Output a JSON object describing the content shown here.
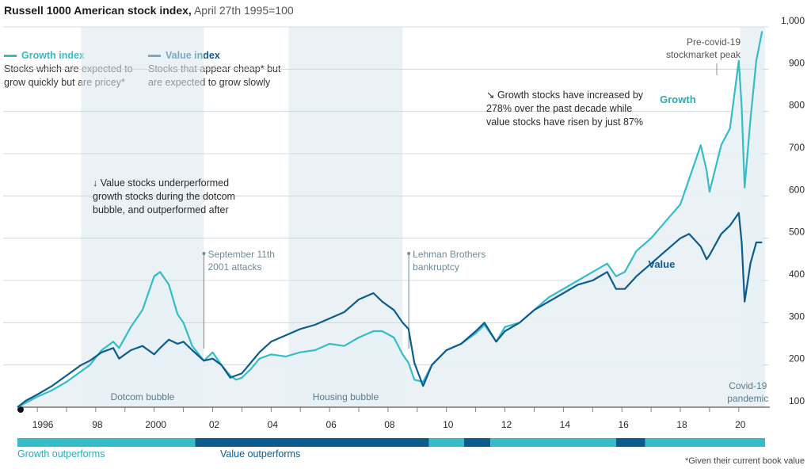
{
  "header": {
    "title": "Russell 1000 American stock index,",
    "subtitle": "April 27th 1995=100"
  },
  "legend": [
    {
      "name": "Growth index",
      "desc_line1": "Stocks which are expected to",
      "desc_line2": "grow quickly but are pricey*",
      "color": "#35bcc7"
    },
    {
      "name": "Value index",
      "desc_line1": "Stocks that appear cheap* but",
      "desc_line2": "are expected to grow slowly",
      "color": "#0e5c8e"
    }
  ],
  "footnote": "*Given their current book value",
  "colors": {
    "growth": "#35bcc7",
    "value": "#0e5c8e",
    "band_growth": "#35bcc7",
    "band_value": "#0e5c8e",
    "shade": "#d9e7ee",
    "fill": "#e8f1f5",
    "grid": "#c9d3d8",
    "text": "#2a2a2a"
  },
  "chart_data": {
    "type": "line",
    "x_unit": "year",
    "xlim": [
      1995.32,
      2020.9
    ],
    "ylim": [
      100,
      1000
    ],
    "yticks": [
      100,
      200,
      300,
      400,
      500,
      600,
      700,
      800,
      900,
      1000
    ],
    "ytick_labels": [
      "100",
      "200",
      "300",
      "400",
      "500",
      "600",
      "700",
      "800",
      "900",
      "1,000"
    ],
    "xticks": [
      1996,
      1998,
      2000,
      2002,
      2004,
      2006,
      2008,
      2010,
      2012,
      2014,
      2016,
      2018,
      2020
    ],
    "xtick_labels": [
      "1996",
      "98",
      "2000",
      "02",
      "04",
      "06",
      "08",
      "10",
      "12",
      "14",
      "16",
      "18",
      "20"
    ],
    "series": [
      {
        "name": "Growth",
        "x": [
          1995.32,
          1995.6,
          1996.0,
          1996.5,
          1997.0,
          1997.5,
          1997.8,
          1998.2,
          1998.6,
          1998.8,
          1999.2,
          1999.6,
          1999.8,
          2000.0,
          2000.2,
          2000.5,
          2000.8,
          2001.0,
          2001.3,
          2001.7,
          2002.0,
          2002.3,
          2002.6,
          2002.8,
          2003.0,
          2003.3,
          2003.6,
          2004.0,
          2004.5,
          2005.0,
          2005.5,
          2006.0,
          2006.5,
          2007.0,
          2007.5,
          2007.8,
          2008.2,
          2008.5,
          2008.7,
          2008.9,
          2009.2,
          2009.5,
          2010.0,
          2010.5,
          2011.0,
          2011.3,
          2011.7,
          2012.0,
          2012.5,
          2013.0,
          2013.5,
          2014.0,
          2014.5,
          2015.0,
          2015.5,
          2015.8,
          2016.1,
          2016.5,
          2017.0,
          2017.5,
          2018.0,
          2018.3,
          2018.7,
          2018.9,
          2019.0,
          2019.4,
          2019.7,
          2020.0,
          2020.1,
          2020.2,
          2020.4,
          2020.6,
          2020.8
        ],
        "values": [
          100,
          110,
          125,
          140,
          160,
          185,
          200,
          235,
          255,
          240,
          290,
          330,
          370,
          410,
          420,
          390,
          320,
          300,
          245,
          210,
          230,
          200,
          175,
          165,
          170,
          190,
          215,
          225,
          220,
          230,
          235,
          250,
          245,
          265,
          280,
          280,
          265,
          225,
          205,
          165,
          160,
          200,
          235,
          250,
          275,
          295,
          255,
          290,
          300,
          330,
          360,
          380,
          400,
          420,
          440,
          410,
          420,
          470,
          500,
          540,
          580,
          640,
          720,
          660,
          610,
          720,
          760,
          920,
          810,
          620,
          780,
          920,
          990
        ]
      },
      {
        "name": "Value",
        "x": [
          1995.32,
          1995.6,
          1996.0,
          1996.5,
          1997.0,
          1997.5,
          1997.8,
          1998.2,
          1998.6,
          1998.8,
          1999.2,
          1999.6,
          1999.8,
          2000.0,
          2000.2,
          2000.5,
          2000.8,
          2001.0,
          2001.3,
          2001.7,
          2002.0,
          2002.3,
          2002.6,
          2002.8,
          2003.0,
          2003.3,
          2003.6,
          2004.0,
          2004.5,
          2005.0,
          2005.5,
          2006.0,
          2006.5,
          2007.0,
          2007.5,
          2007.8,
          2008.2,
          2008.5,
          2008.7,
          2008.9,
          2009.2,
          2009.5,
          2010.0,
          2010.5,
          2011.0,
          2011.3,
          2011.7,
          2012.0,
          2012.5,
          2013.0,
          2013.5,
          2014.0,
          2014.5,
          2015.0,
          2015.5,
          2015.8,
          2016.1,
          2016.5,
          2017.0,
          2017.5,
          2018.0,
          2018.3,
          2018.7,
          2018.9,
          2019.0,
          2019.4,
          2019.7,
          2020.0,
          2020.1,
          2020.2,
          2020.4,
          2020.6,
          2020.8
        ],
        "values": [
          100,
          115,
          130,
          150,
          175,
          200,
          210,
          230,
          240,
          215,
          235,
          245,
          235,
          225,
          240,
          260,
          250,
          255,
          235,
          210,
          215,
          200,
          170,
          175,
          180,
          205,
          230,
          255,
          270,
          285,
          295,
          310,
          325,
          355,
          370,
          350,
          330,
          300,
          285,
          205,
          150,
          200,
          235,
          250,
          280,
          300,
          255,
          280,
          300,
          330,
          350,
          370,
          390,
          400,
          420,
          380,
          380,
          410,
          440,
          470,
          500,
          510,
          480,
          450,
          460,
          510,
          530,
          560,
          490,
          350,
          440,
          490,
          490
        ]
      }
    ],
    "shaded_periods": [
      {
        "label": "Dotcom bubble",
        "start": 1997.5,
        "end": 2001.7
      },
      {
        "label": "Housing bubble",
        "start": 2004.6,
        "end": 2008.5
      },
      {
        "label": "Covid-19 pandemic",
        "label_line1": "Covid-19",
        "label_line2": "pandemic",
        "start": 2020.05,
        "end": 2020.9
      }
    ],
    "events": [
      {
        "x": 2001.7,
        "label_line1": "September 11th",
        "label_line2": "2001 attacks"
      },
      {
        "x": 2008.71,
        "label_line1": "Lehman Brothers",
        "label_line2": "bankruptcy"
      }
    ],
    "series_labels": [
      {
        "text": "Growth",
        "x": 2017.3,
        "y": 820
      },
      {
        "text": "Value",
        "x": 2016.9,
        "y": 430
      }
    ],
    "annotations": [
      {
        "id": "peak",
        "line1": "Pre-covid-19",
        "line2": "stockmarket peak"
      },
      {
        "id": "growth_note",
        "line1": "↘ Growth stocks have increased by",
        "line2": "278% over the past decade while",
        "line3": "value stocks have risen by just 87%"
      },
      {
        "id": "value_note",
        "line1": "↓ Value stocks underperformed",
        "line2": "growth stocks during the dotcom",
        "line3": "bubble, and outperformed after"
      }
    ],
    "performance_band": {
      "growth_label": "Growth outperforms",
      "value_label": "Value outperforms",
      "segments": [
        {
          "start": 1995.32,
          "end": 2001.4,
          "leader": "growth"
        },
        {
          "start": 2001.4,
          "end": 2009.4,
          "leader": "value"
        },
        {
          "start": 2009.4,
          "end": 2010.6,
          "leader": "growth"
        },
        {
          "start": 2010.6,
          "end": 2011.5,
          "leader": "value"
        },
        {
          "start": 2011.5,
          "end": 2015.8,
          "leader": "growth"
        },
        {
          "start": 2015.8,
          "end": 2016.8,
          "leader": "value"
        },
        {
          "start": 2016.8,
          "end": 2020.9,
          "leader": "growth"
        }
      ]
    }
  }
}
